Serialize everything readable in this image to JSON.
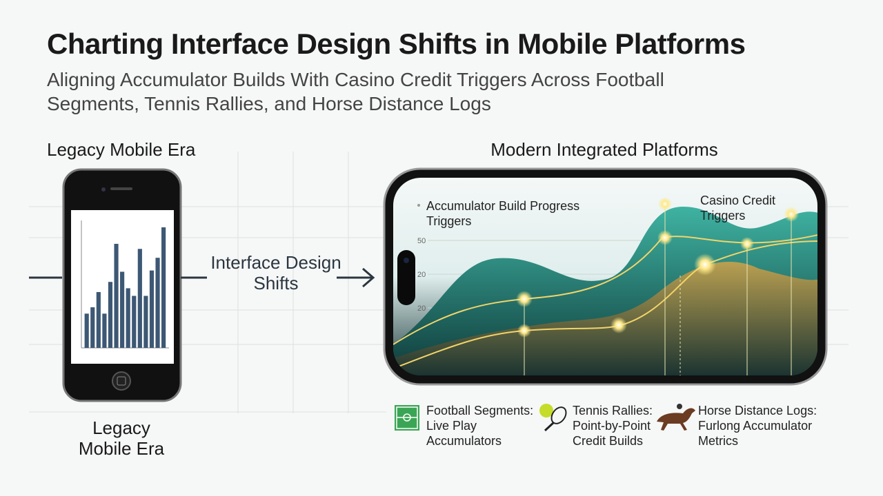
{
  "header": {
    "title": "Charting Interface Design Shifts in Mobile Platforms",
    "subtitle": "Aligning Accumulator Builds With Casino Credit Triggers Across Football Segments, Tennis Rallies, and Horse Distance Logs"
  },
  "legacy": {
    "label": "Legacy Mobile Era",
    "caption": "Legacy Mobile Era",
    "bar_values": [
      27,
      32,
      44,
      27,
      52,
      82,
      60,
      47,
      41,
      78,
      41,
      61,
      71,
      95
    ]
  },
  "transition": {
    "label": "Interface Design Shifts"
  },
  "modern": {
    "label": "Modern Integrated Platforms",
    "annotations": [
      "Accumulator Build Progress Triggers",
      "Casino Credit Triggers"
    ],
    "axis_labels": [
      50,
      20,
      20
    ]
  },
  "legend": [
    {
      "title": "Football Segments:",
      "text": "Live Play Accumulators"
    },
    {
      "title": "Tennis Rallies:",
      "text": "Point-by-Point Credit Builds"
    },
    {
      "title": "Horse Distance Logs:",
      "text": "Furlong Accumulator Metrics"
    }
  ]
}
